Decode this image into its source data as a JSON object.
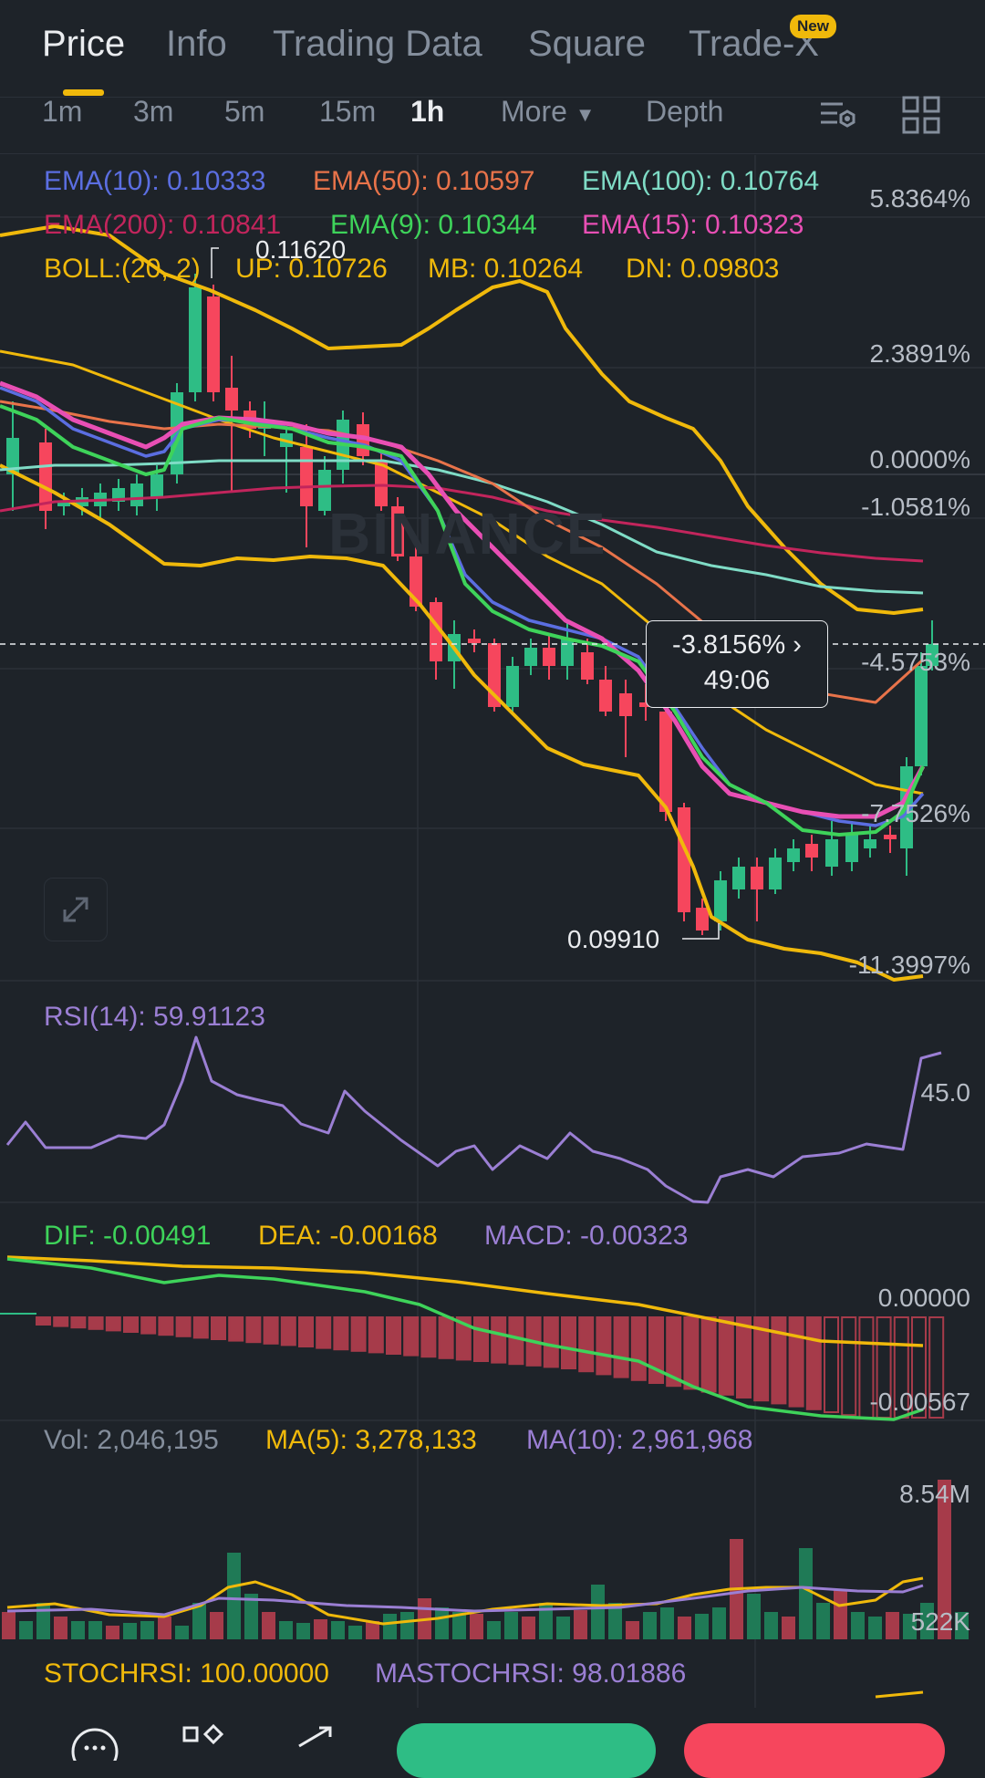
{
  "tabs": [
    {
      "label": "Price",
      "active": true
    },
    {
      "label": "Info",
      "active": false
    },
    {
      "label": "Trading Data",
      "active": false
    },
    {
      "label": "Square",
      "active": false
    },
    {
      "label": "Trade-X",
      "active": false
    }
  ],
  "new_badge": "New",
  "intervals": [
    {
      "label": "1m",
      "active": false
    },
    {
      "label": "3m",
      "active": false
    },
    {
      "label": "5m",
      "active": false
    },
    {
      "label": "15m",
      "active": false
    },
    {
      "label": "1h",
      "active": true
    },
    {
      "label": "More",
      "active": false
    },
    {
      "label": "Depth",
      "active": false
    }
  ],
  "ema_legend": {
    "ema10": "EMA(10): 0.10333",
    "ema50": "EMA(50): 0.10597",
    "ema100": "EMA(100): 0.10764",
    "ema200": "EMA(200): 0.10841",
    "ema9": "EMA(9): 0.10344",
    "ema15": "EMA(15): 0.10323"
  },
  "boll_legend": {
    "boll": "BOLL:(20, 2)",
    "up": "UP: 0.10726",
    "mb": "MB: 0.10264",
    "dn": "DN: 0.09803"
  },
  "price_axis": [
    "5.8364%",
    "2.3891%",
    "0.0000%",
    "-1.0581%",
    "-4.5753%",
    "-7.7526%",
    "-11.3997%"
  ],
  "high_label": "0.11620",
  "low_label": "0.09910",
  "tooltip": {
    "change": "-3.8156%",
    "countdown": "49:06"
  },
  "watermark": "BINANCE",
  "rsi": {
    "label": "RSI(14): 59.91123",
    "axis": "45.0"
  },
  "macd": {
    "dif": "DIF: -0.00491",
    "dea": "DEA: -0.00168",
    "macd": "MACD: -0.00323",
    "axis_top": "0.00000",
    "axis_bottom": "-0.00567"
  },
  "vol": {
    "vol": "Vol: 2,046,195",
    "ma5": "MA(5): 3,278,133",
    "ma10": "MA(10): 2,961,968",
    "axis_top": "8.54M",
    "axis_bottom": "522K"
  },
  "stochrsi": {
    "stoch": "STOCHRSI: 100.00000",
    "mastoch": "MASTOCHRSI: 98.01886"
  },
  "colors": {
    "up": "#2ebd85",
    "down": "#f6465d",
    "ema10": "#5b6ee1",
    "ema50": "#e8734a",
    "ema100": "#7fdcc6",
    "ema200": "#c2255c",
    "ema9": "#3ed35a",
    "ema15": "#e84fb4",
    "boll": "#f0b90b",
    "rsi": "#9b7fd4"
  }
}
